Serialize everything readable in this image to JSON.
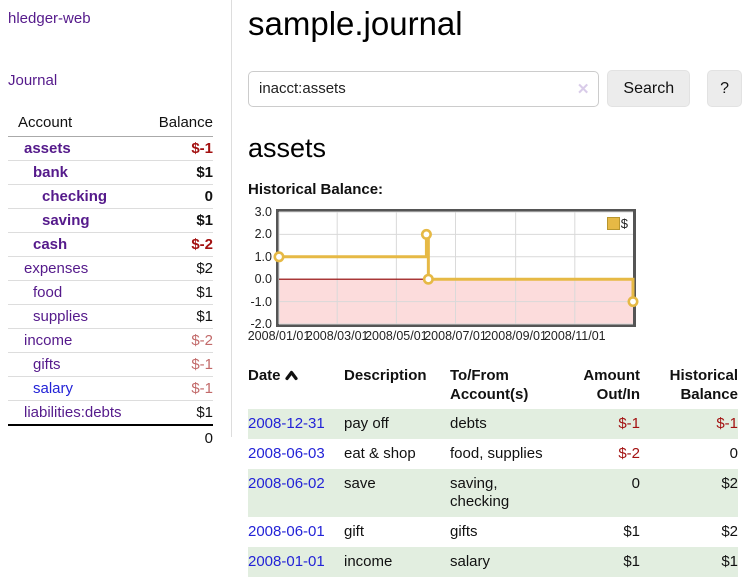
{
  "colors": {
    "purple_link": "#551a8b",
    "blue_link": "#2323d7",
    "negative_strong": "#a31111",
    "negative_soft": "#c26a6a",
    "row_stripe_green": "#e2eee0",
    "chart_line_gold": "#e6b945",
    "chart_negative_area": "#fcdcdc",
    "chart_zero_line": "#8e0000"
  },
  "sidebar": {
    "app_title": "hledger-web",
    "journal_link": "Journal",
    "accounts": {
      "col_account": "Account",
      "col_balance": "Balance",
      "rows": [
        {
          "name": "assets",
          "balance": "$-1"
        },
        {
          "name": "bank",
          "balance": "$1"
        },
        {
          "name": "checking",
          "balance": "0"
        },
        {
          "name": "saving",
          "balance": "$1"
        },
        {
          "name": "cash",
          "balance": "$-2"
        },
        {
          "name": "expenses",
          "balance": "$2"
        },
        {
          "name": "food",
          "balance": "$1"
        },
        {
          "name": "supplies",
          "balance": "$1"
        },
        {
          "name": "income",
          "balance": "$-2"
        },
        {
          "name": "gifts",
          "balance": "$-1"
        },
        {
          "name": "salary",
          "balance": "$-1"
        },
        {
          "name": "liabilities:debts",
          "balance": "$1"
        }
      ],
      "total": "0"
    }
  },
  "main": {
    "page_title": "sample.journal",
    "search": {
      "value": "inacct:assets",
      "clear_label": "✕",
      "search_button": "Search",
      "help_button": "?"
    },
    "account_heading": "assets",
    "chart_heading": "Historical Balance:"
  },
  "chart_data": {
    "type": "line",
    "style": "step-after",
    "title": "Historical Balance",
    "legend": "$",
    "legend_position": "top-right",
    "grid": true,
    "x_range": [
      "2008-01-01",
      "2008-12-31"
    ],
    "ylim": [
      -2,
      3
    ],
    "y_ticks": [
      3.0,
      2.0,
      1.0,
      0.0,
      -1.0,
      -2.0
    ],
    "x_tick_labels": [
      "2008/01/01",
      "2008/03/01",
      "2008/05/01",
      "2008/07/01",
      "2008/09/01",
      "2008/11/01"
    ],
    "series": [
      {
        "name": "$",
        "points": [
          [
            "2008-01-01",
            1
          ],
          [
            "2008-06-01",
            2
          ],
          [
            "2008-06-03",
            0
          ],
          [
            "2008-12-31",
            -1
          ]
        ]
      }
    ],
    "negative_region_shaded": true
  },
  "register": {
    "headers": {
      "date": "Date",
      "description": "Description",
      "accounts": "To/From Account(s)",
      "amount": "Amount Out/In",
      "balance": "Historical Balance"
    },
    "rows": [
      {
        "date": "2008-12-31",
        "description": "pay off",
        "accounts": "debts",
        "amount": "$-1",
        "balance": "$-1"
      },
      {
        "date": "2008-06-03",
        "description": "eat & shop",
        "accounts": "food, supplies",
        "amount": "$-2",
        "balance": "0"
      },
      {
        "date": "2008-06-02",
        "description": "save",
        "accounts": "saving, checking",
        "amount": "0",
        "balance": "$2"
      },
      {
        "date": "2008-06-01",
        "description": "gift",
        "accounts": "gifts",
        "amount": "$1",
        "balance": "$2"
      },
      {
        "date": "2008-01-01",
        "description": "income",
        "accounts": "salary",
        "amount": "$1",
        "balance": "$1"
      }
    ]
  }
}
